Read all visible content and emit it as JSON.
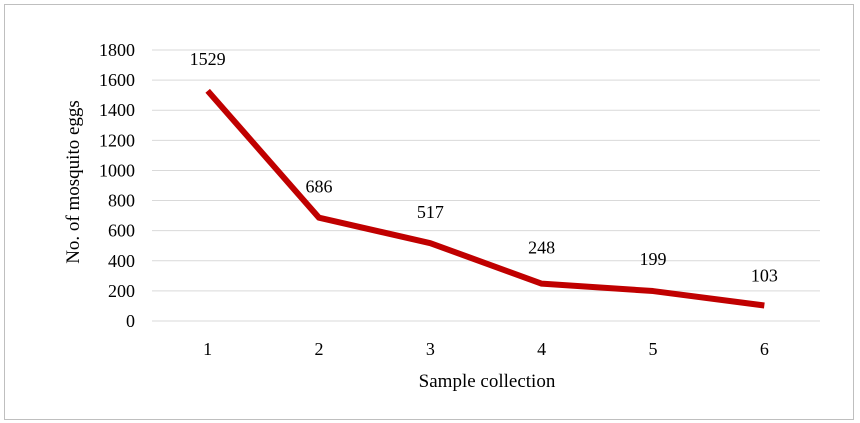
{
  "chart_data": {
    "type": "line",
    "title": "",
    "xlabel": "Sample collection",
    "ylabel": "No. of mosquito eggs",
    "categories": [
      "1",
      "2",
      "3",
      "4",
      "5",
      "6"
    ],
    "series": [
      {
        "values": [
          1529,
          686,
          517,
          248,
          199,
          103
        ],
        "color": "#c00000"
      }
    ],
    "data_labels": [
      "1529",
      "686",
      "517",
      "248",
      "199",
      "103"
    ],
    "ylim": [
      0,
      1800
    ],
    "yticks": [
      "0",
      "200",
      "400",
      "600",
      "800",
      "1000",
      "1200",
      "1400",
      "1600",
      "1800"
    ],
    "grid": true,
    "legend": "none"
  }
}
